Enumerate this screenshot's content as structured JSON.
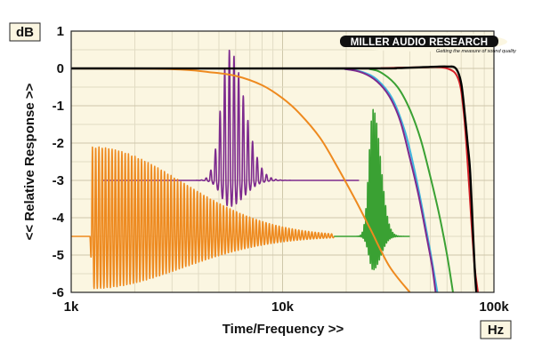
{
  "units": {
    "y": "dB",
    "x": "Hz"
  },
  "logo": {
    "name": "MILLER AUDIO RESEARCH",
    "tagline": "Getting the measure of sound quality"
  },
  "colors": {
    "plot_bg": "#fbf6e1",
    "grid": "#e2dcc4",
    "black": "#000000",
    "red": "#d42027",
    "green": "#3aa133",
    "cyan": "#3fb5df",
    "purple": "#7d2a8e",
    "orange": "#ee8a1f"
  },
  "chart_data": {
    "type": "line",
    "ylabel": "<< Relative Response >>",
    "xlabel": "Time/Frequency >>",
    "x_scale": "log",
    "xlim": [
      1000,
      100000
    ],
    "ylim": [
      -6,
      1
    ],
    "x_ticks": [
      {
        "value": 1000,
        "label": "1k"
      },
      {
        "value": 10000,
        "label": "10k"
      },
      {
        "value": 100000,
        "label": "100k"
      }
    ],
    "y_ticks": [
      {
        "value": 1,
        "label": "1"
      },
      {
        "value": 0,
        "label": "0"
      },
      {
        "value": -1,
        "label": "-1"
      },
      {
        "value": -2,
        "label": "-2"
      },
      {
        "value": -3,
        "label": "-3"
      },
      {
        "value": -4,
        "label": "-4"
      },
      {
        "value": -5,
        "label": "-5"
      },
      {
        "value": -6,
        "label": "-6"
      }
    ],
    "grid": true,
    "frequency_responses": [
      {
        "color": "orange",
        "points": [
          [
            1000,
            0
          ],
          [
            3000,
            -0.02
          ],
          [
            4500,
            -0.1
          ],
          [
            6000,
            -0.2
          ],
          [
            8000,
            -0.45
          ],
          [
            10000,
            -0.8
          ],
          [
            12000,
            -1.2
          ],
          [
            15000,
            -1.85
          ],
          [
            18000,
            -2.6
          ],
          [
            22000,
            -3.5
          ],
          [
            26000,
            -4.3
          ],
          [
            32000,
            -5.3
          ],
          [
            40000,
            -6.0
          ]
        ]
      },
      {
        "color": "cyan",
        "points": [
          [
            1000,
            0
          ],
          [
            15000,
            0
          ],
          [
            20000,
            -0.02
          ],
          [
            24000,
            -0.1
          ],
          [
            28000,
            -0.3
          ],
          [
            33000,
            -0.8
          ],
          [
            38000,
            -1.7
          ],
          [
            42000,
            -2.7
          ],
          [
            46000,
            -3.8
          ],
          [
            50000,
            -4.9
          ],
          [
            54000,
            -6.0
          ]
        ]
      },
      {
        "color": "purple",
        "points": [
          [
            1000,
            0
          ],
          [
            15000,
            0
          ],
          [
            20000,
            -0.02
          ],
          [
            24000,
            -0.12
          ],
          [
            28000,
            -0.35
          ],
          [
            32000,
            -0.75
          ],
          [
            36000,
            -1.4
          ],
          [
            40000,
            -2.4
          ],
          [
            44000,
            -3.4
          ],
          [
            48000,
            -4.5
          ],
          [
            51000,
            -5.3
          ],
          [
            53000,
            -6.0
          ]
        ]
      },
      {
        "color": "green",
        "points": [
          [
            1000,
            0
          ],
          [
            20000,
            0
          ],
          [
            26000,
            -0.02
          ],
          [
            30000,
            -0.15
          ],
          [
            35000,
            -0.5
          ],
          [
            40000,
            -1.1
          ],
          [
            45000,
            -1.9
          ],
          [
            50000,
            -2.9
          ],
          [
            55000,
            -3.9
          ],
          [
            60000,
            -5.0
          ],
          [
            64000,
            -6.0
          ]
        ]
      },
      {
        "color": "red",
        "points": [
          [
            1000,
            0
          ],
          [
            22000,
            0
          ],
          [
            30000,
            0.01
          ],
          [
            45000,
            0.03
          ],
          [
            60000,
            0.0
          ],
          [
            68000,
            -0.3
          ],
          [
            72000,
            -1.2
          ],
          [
            75000,
            -2.5
          ],
          [
            78000,
            -4.0
          ],
          [
            81000,
            -5.3
          ],
          [
            84000,
            -6.0
          ]
        ]
      },
      {
        "color": "black",
        "points": [
          [
            1000,
            0
          ],
          [
            24000,
            0
          ],
          [
            35000,
            0.01
          ],
          [
            50000,
            0.04
          ],
          [
            60000,
            0.05
          ],
          [
            66000,
            0.0
          ],
          [
            70000,
            -0.4
          ],
          [
            73000,
            -1.3
          ],
          [
            75000,
            -2.0
          ],
          [
            77000,
            -2.7
          ],
          [
            79000,
            -4.0
          ],
          [
            81000,
            -5.3
          ],
          [
            82500,
            -6.0
          ]
        ]
      }
    ],
    "impulse_responses": [
      {
        "color": "purple",
        "baseline": -3.0,
        "x_start": 1400,
        "x_end": 23000,
        "peak_x": 5600,
        "peak": 0.5,
        "trough": -3.7,
        "ringing_freq_log": 0.022,
        "envelope_width_log": 0.1
      },
      {
        "color": "orange",
        "baseline": -4.5,
        "x_start": 1000,
        "x_end": 17500,
        "peak_x": 1260,
        "peak": -2.1,
        "trough": -5.9,
        "ringing_freq_log": 0.0155,
        "envelope_width_log": 0.6
      },
      {
        "color": "green",
        "baseline": -4.5,
        "x_start": 17500,
        "x_end": 40000,
        "peak_x": 26800,
        "peak": -1.1,
        "trough": -5.4,
        "ringing_freq_log": 0.0085,
        "envelope_width_log": 0.05
      }
    ]
  }
}
